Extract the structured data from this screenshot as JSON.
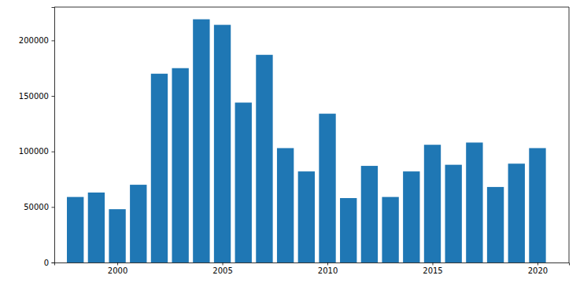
{
  "chart_data": {
    "type": "bar",
    "x": [
      1998,
      1999,
      2000,
      2001,
      2002,
      2003,
      2004,
      2005,
      2006,
      2007,
      2008,
      2009,
      2010,
      2011,
      2012,
      2013,
      2014,
      2015,
      2016,
      2017,
      2018,
      2019,
      2020
    ],
    "values": [
      59000,
      63000,
      48000,
      70000,
      170000,
      175000,
      219000,
      214000,
      144000,
      187000,
      103000,
      82000,
      134000,
      58000,
      87000,
      59000,
      82000,
      106000,
      88000,
      108000,
      68000,
      89000,
      103000
    ],
    "color": "#1f77b4",
    "xlim": [
      1997,
      2021.5
    ],
    "xticks": [
      2000,
      2005,
      2010,
      2015,
      2020
    ],
    "ylim": [
      0,
      230000
    ],
    "yticks": [
      0,
      50000,
      100000,
      150000,
      200000
    ],
    "grid": false
  }
}
